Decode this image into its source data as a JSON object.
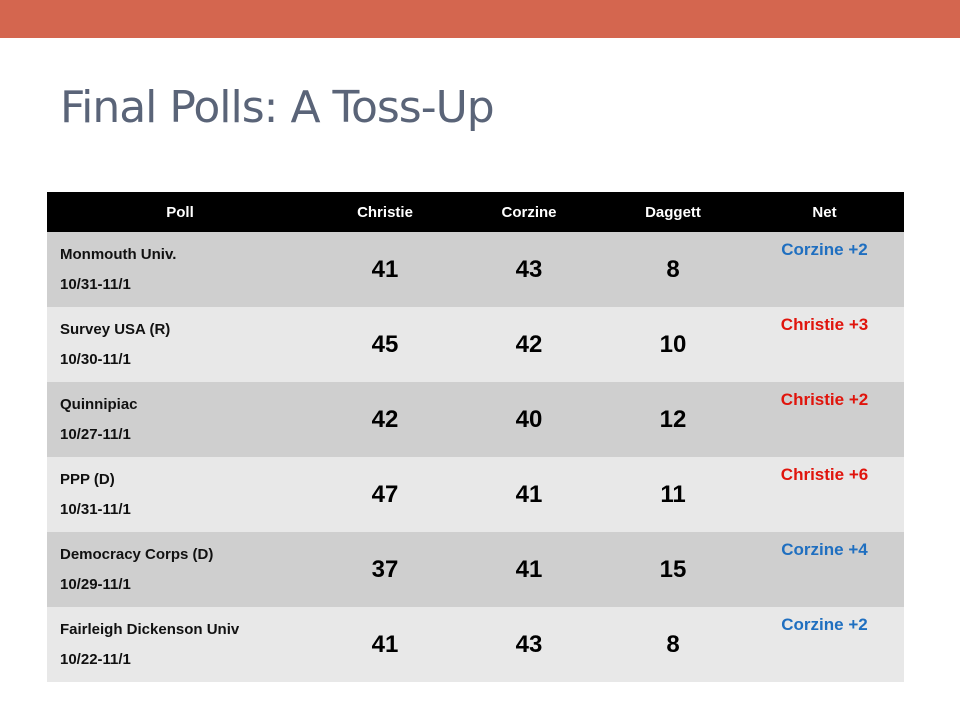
{
  "slide": {
    "title": "Final Polls: A Toss-Up"
  },
  "colors": {
    "accent_bar": "#d4664f",
    "corzine": "#1f6fc0",
    "christie": "#e0140c"
  },
  "table": {
    "headers": [
      "Poll",
      "Christie",
      "Corzine",
      "Daggett",
      "Net"
    ],
    "rows": [
      {
        "poll": "Monmouth Univ.",
        "dates": "10/31-11/1",
        "christie": "41",
        "corzine": "43",
        "daggett": "8",
        "net": "Corzine +2",
        "net_color": "#1f6fc0"
      },
      {
        "poll": "Survey USA (R)",
        "dates": "10/30-11/1",
        "christie": "45",
        "corzine": "42",
        "daggett": "10",
        "net": "Christie +3",
        "net_color": "#e0140c"
      },
      {
        "poll": "Quinnipiac",
        "dates": "10/27-11/1",
        "christie": "42",
        "corzine": "40",
        "daggett": "12",
        "net": "Christie +2",
        "net_color": "#e0140c"
      },
      {
        "poll": "PPP (D)",
        "dates": "10/31-11/1",
        "christie": "47",
        "corzine": "41",
        "daggett": "11",
        "net": "Christie +6",
        "net_color": "#e0140c"
      },
      {
        "poll": "Democracy Corps (D)",
        "dates": "10/29-11/1",
        "christie": "37",
        "corzine": "41",
        "daggett": "15",
        "net": "Corzine +4",
        "net_color": "#1f6fc0"
      },
      {
        "poll": "Fairleigh Dickenson Univ",
        "dates": "10/22-11/1",
        "christie": "41",
        "corzine": "43",
        "daggett": "8",
        "net": "Corzine +2",
        "net_color": "#1f6fc0"
      }
    ]
  }
}
